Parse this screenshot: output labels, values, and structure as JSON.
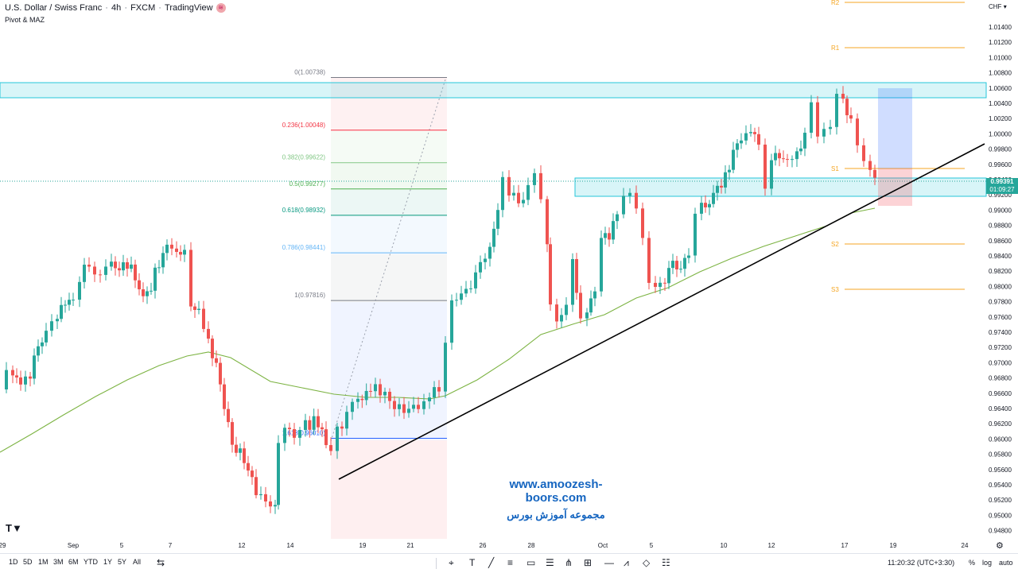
{
  "header": {
    "symbol": "U.S. Dollar / Swiss Franc",
    "interval": "4h",
    "exchange": "FXCM",
    "platform": "TradingView",
    "indicator": "Pivot & MAZ"
  },
  "currency": "CHF",
  "price_axis": {
    "labels": [
      "1.01400",
      "1.01200",
      "1.01000",
      "1.00800",
      "1.00600",
      "1.00400",
      "1.00200",
      "1.00000",
      "0.99800",
      "0.99600",
      "0.99400",
      "0.99200",
      "0.99000",
      "0.98800",
      "0.98600",
      "0.98400",
      "0.98200",
      "0.98000",
      "0.97800",
      "0.97600",
      "0.97400",
      "0.97200",
      "0.97000",
      "0.96800",
      "0.96600",
      "0.96400",
      "0.96200",
      "0.96000",
      "0.95800",
      "0.95600",
      "0.95400",
      "0.95200",
      "0.95000",
      "0.94800"
    ],
    "current_price": "0.99391",
    "countdown": "01:09:27"
  },
  "time_axis": [
    "29",
    "Sep",
    "5",
    "7",
    "12",
    "14",
    "19",
    "21",
    "26",
    "28",
    "Oct",
    "5",
    "10",
    "12",
    "17",
    "19",
    "24"
  ],
  "pivots": [
    "R2",
    "R1",
    "S1",
    "S2",
    "S3"
  ],
  "fibonacci": [
    {
      "label": "0(1.00738)",
      "price": 1.00738,
      "color": "#787b86"
    },
    {
      "label": "0.236(1.00048)",
      "price": 1.00048,
      "color": "#f23645"
    },
    {
      "label": "0.382(0.99622)",
      "price": 0.99622,
      "color": "#81c784"
    },
    {
      "label": "0.5(0.99277)",
      "price": 0.99277,
      "color": "#4caf50"
    },
    {
      "label": "0.618(0.98932)",
      "price": 0.98932,
      "color": "#089981"
    },
    {
      "label": "0.786(0.98441)",
      "price": 0.98441,
      "color": "#64b5f6"
    },
    {
      "label": "1(0.97816)",
      "price": 0.97816,
      "color": "#787b86"
    },
    {
      "label": "1.618(0.96010)",
      "price": 0.9601,
      "color": "#2962ff"
    }
  ],
  "watermark": {
    "url": "www.amoozesh-boors.com",
    "name": "مجموعه آموزش بورس"
  },
  "toolbar": {
    "timeframes": [
      "1D",
      "5D",
      "1M",
      "3M",
      "6M",
      "YTD",
      "1Y",
      "5Y",
      "All"
    ],
    "clock": "11:20:32 (UTC+3:30)",
    "percent": "%",
    "log": "log",
    "auto": "auto"
  },
  "colors": {
    "up": "#26a69a",
    "down": "#ef5350",
    "ma": "#7cb342",
    "zone": "#4dd0e1",
    "trend": "#000000"
  }
}
